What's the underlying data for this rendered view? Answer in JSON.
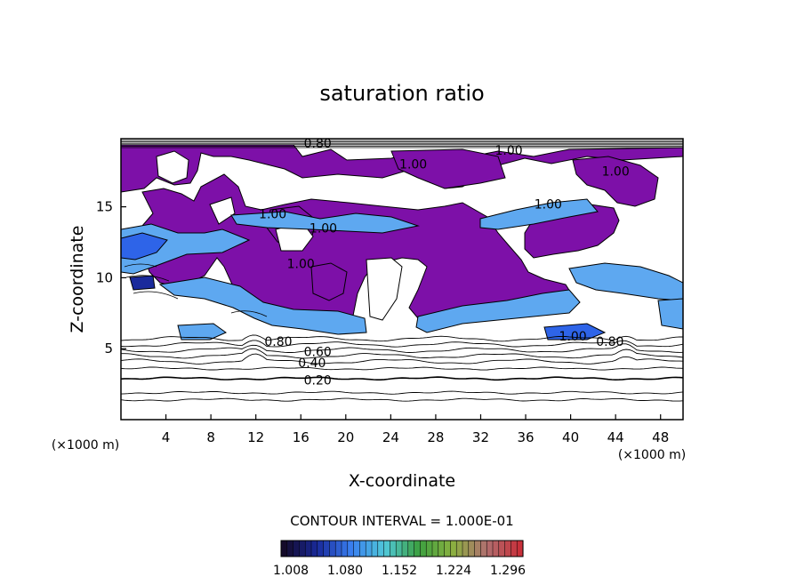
{
  "chart_data": {
    "type": "contour",
    "title": "saturation ratio",
    "xlabel": "X-coordinate",
    "ylabel": "Z-coordinate",
    "x_unit_label": "(×1000 m)",
    "z_unit_label": "(×1000 m)",
    "xlim": [
      0,
      50
    ],
    "ylim": [
      0,
      19.8
    ],
    "x_ticks": [
      4,
      8,
      12,
      16,
      20,
      24,
      28,
      32,
      36,
      40,
      44,
      48
    ],
    "y_ticks": [
      5,
      10,
      15
    ],
    "contour_interval_text": "CONTOUR INTERVAL = 1.000E-01",
    "contour_labels": [
      {
        "text": "0.20",
        "x": 17.5,
        "z": 2.8
      },
      {
        "text": "0.40",
        "x": 17.0,
        "z": 4.0
      },
      {
        "text": "0.60",
        "x": 17.5,
        "z": 4.8
      },
      {
        "text": "0.80",
        "x": 14.0,
        "z": 5.5
      },
      {
        "text": "0.80",
        "x": 43.5,
        "z": 5.5
      },
      {
        "text": "1.00",
        "x": 40.2,
        "z": 5.9
      },
      {
        "text": "1.00",
        "x": 13.5,
        "z": 14.5
      },
      {
        "text": "1.00",
        "x": 18.0,
        "z": 13.5
      },
      {
        "text": "1.00",
        "x": 38.0,
        "z": 15.2
      },
      {
        "text": "1.00",
        "x": 34.5,
        "z": 19.0
      },
      {
        "text": "1.00",
        "x": 44.0,
        "z": 17.5
      },
      {
        "text": "1.00",
        "x": 26.0,
        "z": 18.0
      },
      {
        "text": "1.00",
        "x": 16.0,
        "z": 11.0
      },
      {
        "text": "0.80",
        "x": 17.5,
        "z": 19.5
      }
    ],
    "isolines_below_cloud": [
      1.4,
      1.9,
      2.9,
      3.6,
      4.1,
      4.5,
      4.9,
      5.3,
      5.7
    ],
    "colorbar": {
      "tick_labels": [
        "1.008",
        "1.080",
        "1.152",
        "1.224",
        "1.296"
      ],
      "colors": [
        "#140a2a",
        "#1a2a9c",
        "#3a7ff0",
        "#50c8d8",
        "#3ca040",
        "#8ab040",
        "#b07070",
        "#c8303a"
      ]
    },
    "fill_colors": {
      "purple": "#7d10a8",
      "light_blue": "#5ea8f0",
      "mid_blue": "#2e64e8",
      "dark_blue": "#1a2a9c"
    }
  }
}
